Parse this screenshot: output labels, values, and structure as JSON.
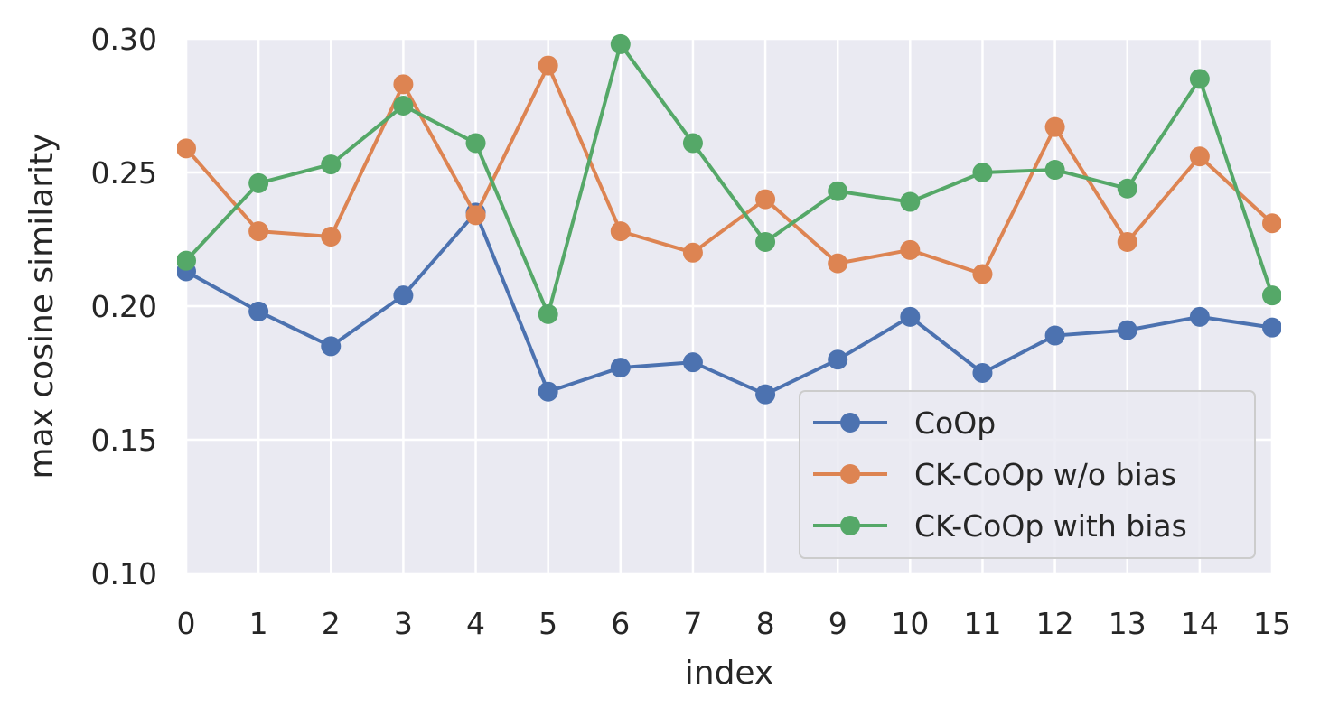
{
  "chart_data": {
    "type": "line",
    "title": "",
    "xlabel": "index",
    "ylabel": "max cosine similarity",
    "xlim": [
      0,
      15
    ],
    "ylim": [
      0.1,
      0.3
    ],
    "grid": true,
    "legend_position": "bottom-right",
    "x": [
      0,
      1,
      2,
      3,
      4,
      5,
      6,
      7,
      8,
      9,
      10,
      11,
      12,
      13,
      14,
      15
    ],
    "x_tick_labels": [
      "0",
      "1",
      "2",
      "3",
      "4",
      "5",
      "6",
      "7",
      "8",
      "9",
      "10",
      "11",
      "12",
      "13",
      "14",
      "15"
    ],
    "y_ticks": [
      0.1,
      0.15,
      0.2,
      0.25,
      0.3
    ],
    "y_tick_labels": [
      "0.10",
      "0.15",
      "0.20",
      "0.25",
      "0.30"
    ],
    "series": [
      {
        "name": "CoOp",
        "color": "#4c72b0",
        "values": [
          0.213,
          0.198,
          0.185,
          0.204,
          0.235,
          0.168,
          0.177,
          0.179,
          0.167,
          0.18,
          0.196,
          0.175,
          0.189,
          0.191,
          0.196,
          0.192
        ]
      },
      {
        "name": "CK-CoOp w/o bias",
        "color": "#dd8452",
        "values": [
          0.259,
          0.228,
          0.226,
          0.283,
          0.234,
          0.29,
          0.228,
          0.22,
          0.24,
          0.216,
          0.221,
          0.212,
          0.267,
          0.224,
          0.256,
          0.231
        ]
      },
      {
        "name": "CK-CoOp with bias",
        "color": "#55a868",
        "values": [
          0.217,
          0.246,
          0.253,
          0.275,
          0.261,
          0.197,
          0.298,
          0.261,
          0.224,
          0.243,
          0.239,
          0.25,
          0.251,
          0.244,
          0.285,
          0.204
        ]
      }
    ]
  }
}
